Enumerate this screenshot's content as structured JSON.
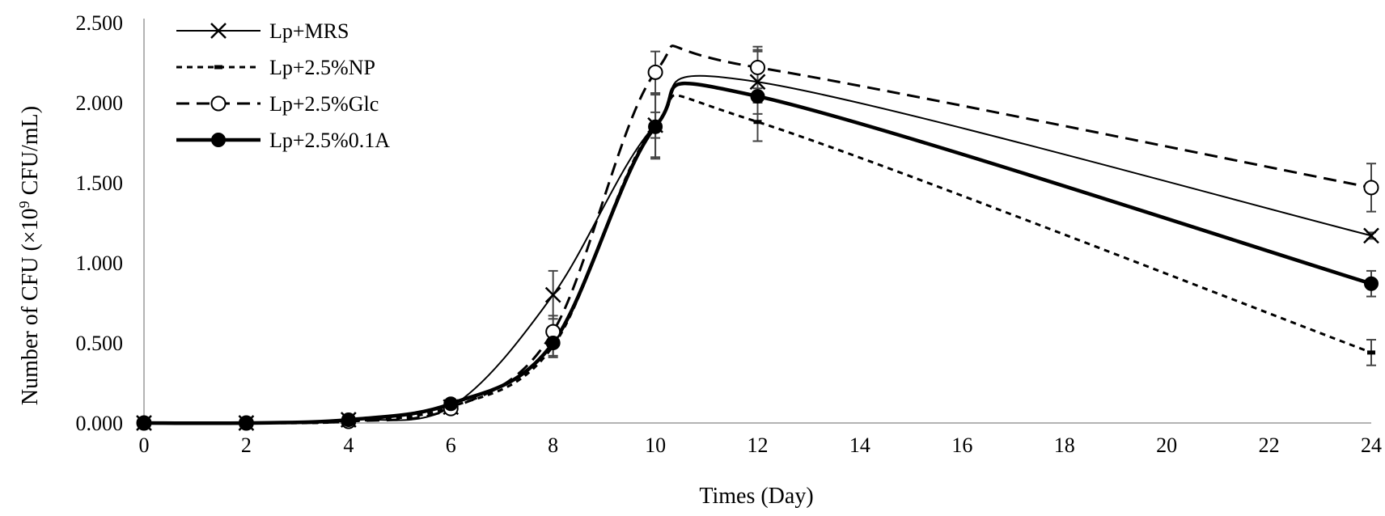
{
  "chart_data": {
    "type": "line",
    "xlabel": "Times (Day)",
    "ylabel_main": "Number of CFU (×10",
    "ylabel_sup": "9",
    "ylabel_tail": " CFU/mL)",
    "xlim": [
      0,
      24
    ],
    "ylim": [
      0,
      2.5
    ],
    "x_ticks": [
      0,
      2,
      4,
      6,
      8,
      10,
      12,
      14,
      16,
      18,
      20,
      22,
      24
    ],
    "x_tick_labels": [
      "0",
      "2",
      "4",
      "6",
      "8",
      "10",
      "12",
      "14",
      "16",
      "18",
      "20",
      "22",
      "24"
    ],
    "y_ticks": [
      0,
      0.5,
      1.0,
      1.5,
      2.0,
      2.5
    ],
    "y_tick_labels": [
      "0.000",
      "0.500",
      "1.000",
      "1.500",
      "2.000",
      "2.500"
    ],
    "grid": false,
    "legend_position": "top-left",
    "x": [
      0,
      2,
      4,
      6,
      8,
      10,
      12,
      24
    ],
    "series": [
      {
        "name": "Lp+MRS",
        "style": "thin-solid",
        "marker": "x",
        "values": [
          0.0,
          0.0,
          0.02,
          0.1,
          0.8,
          1.86,
          2.13,
          1.17
        ],
        "errors": [
          0,
          0,
          0.01,
          0.02,
          0.15,
          0.2,
          0.2,
          0.02
        ]
      },
      {
        "name": "Lp+2.5%NP",
        "style": "short-dash",
        "marker": "dash",
        "values": [
          0.0,
          0.0,
          0.01,
          0.1,
          0.48,
          1.86,
          1.88,
          0.44
        ],
        "errors": [
          0,
          0,
          0.01,
          0.02,
          0.07,
          0.08,
          0.12,
          0.08
        ]
      },
      {
        "name": "Lp+2.5%Glc",
        "style": "long-dash",
        "marker": "open-circle",
        "values": [
          0.0,
          0.0,
          0.01,
          0.09,
          0.57,
          2.19,
          2.22,
          1.47
        ],
        "errors": [
          0,
          0,
          0.01,
          0.02,
          0.1,
          0.13,
          0.13,
          0.15
        ]
      },
      {
        "name": "Lp+2.5%0.1A",
        "style": "thick-solid",
        "marker": "filled-circle",
        "values": [
          0.0,
          0.0,
          0.02,
          0.12,
          0.5,
          1.85,
          2.04,
          0.87
        ],
        "errors": [
          0,
          0,
          0.01,
          0.02,
          0.08,
          0.2,
          0.28,
          0.08
        ]
      }
    ]
  }
}
